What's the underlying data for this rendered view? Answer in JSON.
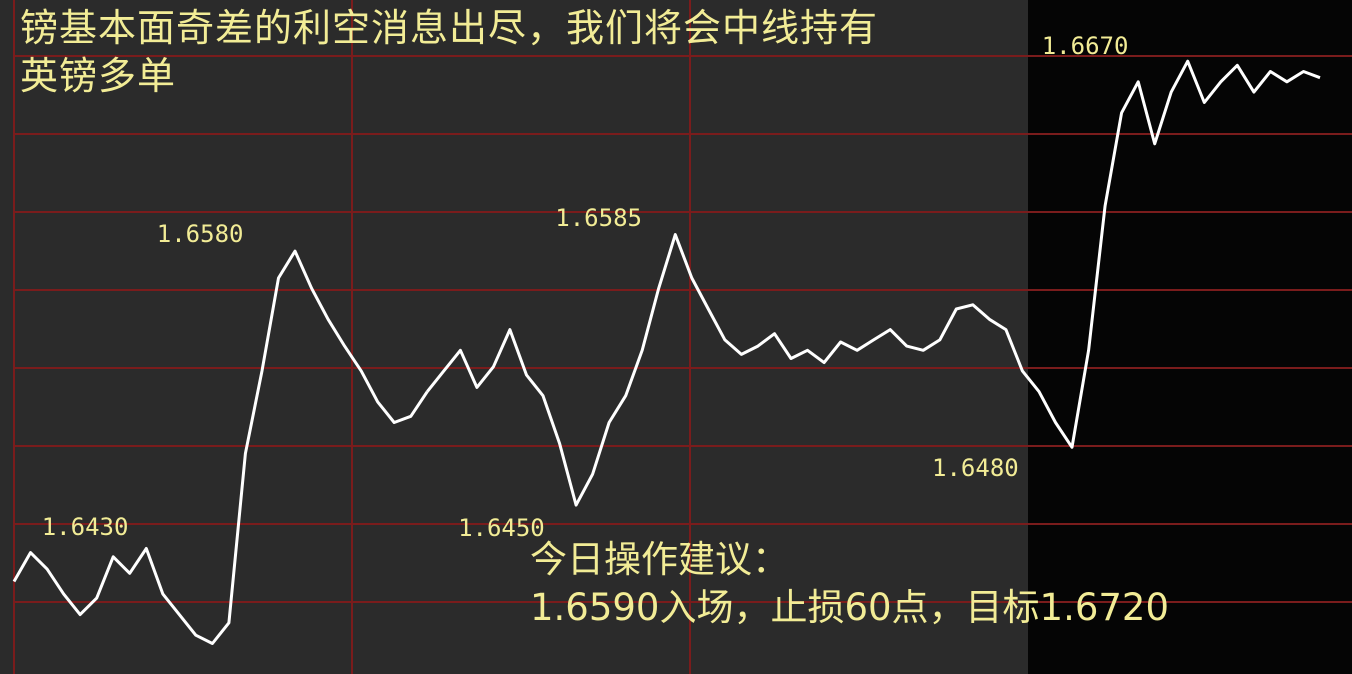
{
  "headline": {
    "line1": "镑基本面奇差的利空消息出尽，我们将会中线持有",
    "line2": "英镑多单"
  },
  "advice": {
    "line1": "今日操作建议：",
    "line2": "1.6590入场，止损60点，目标1.6720"
  },
  "colors": {
    "background": "#2b2b2b",
    "session_background": "#050505",
    "grid": "#7a1c1c",
    "price_line": "#ffffff",
    "text": "#f2ec96"
  },
  "chart_data": {
    "type": "line",
    "series": [
      {
        "x": [
          0,
          4,
          8,
          12,
          16,
          20,
          24,
          28,
          32,
          36,
          40,
          44,
          48,
          52,
          56,
          60,
          64,
          68,
          72,
          76,
          80,
          84,
          88,
          92,
          96,
          100
        ],
        "values": [
          1.6418,
          1.6432,
          1.6424,
          1.6412,
          1.6402,
          1.641,
          1.643,
          1.6422,
          1.6434,
          1.6412,
          1.6402,
          1.6392,
          1.6388,
          1.6398,
          1.648,
          1.652,
          1.6565,
          1.6578,
          1.656,
          1.6545,
          1.6532,
          1.652,
          1.6505,
          1.6495,
          1.6498,
          1.651
        ]
      },
      {
        "x": [
          100,
          104,
          108,
          112,
          116,
          120,
          124,
          128,
          132,
          136,
          140,
          144,
          148,
          152,
          156,
          160,
          164,
          168,
          172,
          176,
          180,
          184,
          188,
          192,
          196,
          200,
          204,
          208,
          212,
          216,
          220,
          224,
          228,
          232,
          236,
          240,
          244,
          248,
          252,
          256,
          260,
          264,
          268,
          272,
          276,
          280,
          284,
          288,
          292,
          296,
          300,
          304,
          308,
          312,
          316
        ],
        "values": [
          1.651,
          1.652,
          1.653,
          1.6512,
          1.6522,
          1.654,
          1.6518,
          1.6508,
          1.6485,
          1.6455,
          1.647,
          1.6495,
          1.6508,
          1.653,
          1.656,
          1.6586,
          1.6565,
          1.655,
          1.6535,
          1.6528,
          1.6532,
          1.6538,
          1.6526,
          1.653,
          1.6524,
          1.6534,
          1.653,
          1.6535,
          1.654,
          1.6532,
          1.653,
          1.6535,
          1.655,
          1.6552,
          1.6545,
          1.654,
          1.652,
          1.651,
          1.6495,
          1.6483,
          1.653,
          1.66,
          1.6645,
          1.666,
          1.663,
          1.6655,
          1.667,
          1.665,
          1.666,
          1.6668,
          1.6655,
          1.6665,
          1.666,
          1.6665,
          1.6662
        ]
      }
    ],
    "annotations": [
      {
        "text": "1.6430",
        "x": 28,
        "y": 1.6434
      },
      {
        "text": "1.6580",
        "x": 66,
        "y": 1.6578
      },
      {
        "text": "1.6585",
        "x": 160,
        "y": 1.6586
      },
      {
        "text": "1.6450",
        "x": 136,
        "y": 1.6455
      },
      {
        "text": "1.6480",
        "x": 256,
        "y": 1.6483
      },
      {
        "text": "1.6670",
        "x": 284,
        "y": 1.667
      }
    ],
    "xlim": [
      0,
      316
    ],
    "ylim": [
      1.638,
      1.6688
    ],
    "grid": true,
    "legend": "none"
  }
}
